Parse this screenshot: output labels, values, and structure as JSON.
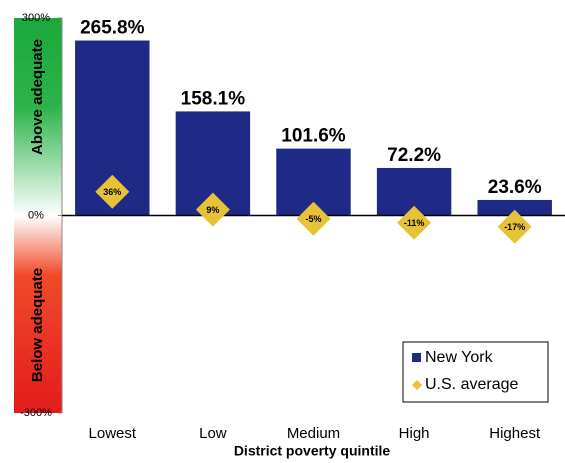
{
  "chart_data": {
    "type": "bar",
    "x_label": "District poverty quintile",
    "annotations": [
      "Above adequate",
      "Below adequate"
    ],
    "categories": [
      "Lowest",
      "Low",
      "Medium",
      "High",
      "Highest"
    ],
    "series": [
      {
        "name": "New York",
        "color": "#1f2a86",
        "values": [
          265.8,
          158.1,
          101.6,
          72.2,
          23.6
        ],
        "value_labels": [
          "265.8%",
          "158.1%",
          "101.6%",
          "72.2%",
          "23.6%"
        ]
      },
      {
        "name": "U.S. average",
        "color": "#e6c237",
        "marker": "diamond",
        "values": [
          36,
          9,
          -5,
          -11,
          -17
        ],
        "value_labels": [
          "36%",
          "9%",
          "-5%",
          "-11%",
          "-17%"
        ]
      }
    ],
    "ylim": [
      -300,
      300
    ],
    "yticks": [
      {
        "value": -300,
        "label": "-300%"
      },
      {
        "value": 0,
        "label": "0%"
      },
      {
        "value": 300,
        "label": "300%"
      }
    ],
    "legend": "lower right"
  }
}
